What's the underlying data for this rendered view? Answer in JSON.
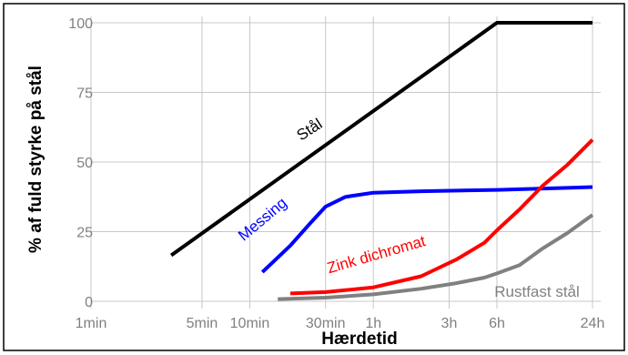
{
  "chart_data": {
    "type": "line",
    "title": "",
    "xlabel": "Hærdetid",
    "ylabel": "% af fuld styrke på stål",
    "x_scale": "log",
    "x_unit": "minutes",
    "x_ticks": [
      {
        "value": 1,
        "label": "1min"
      },
      {
        "value": 5,
        "label": "5min"
      },
      {
        "value": 10,
        "label": "10min"
      },
      {
        "value": 30,
        "label": "30min"
      },
      {
        "value": 60,
        "label": "1h"
      },
      {
        "value": 180,
        "label": "3h"
      },
      {
        "value": 360,
        "label": "6h"
      },
      {
        "value": 1440,
        "label": "24h"
      }
    ],
    "y_ticks": [
      0,
      25,
      50,
      75,
      100
    ],
    "xlim": [
      1,
      1440
    ],
    "ylim": [
      0,
      100
    ],
    "grid": true,
    "series": [
      {
        "name": "Stål",
        "color": "#000000",
        "points": [
          [
            3.2,
            16.5
          ],
          [
            360,
            100
          ],
          [
            1440,
            100
          ]
        ]
      },
      {
        "name": "Messing",
        "color": "#0000ff",
        "points": [
          [
            12,
            10.5
          ],
          [
            18,
            20
          ],
          [
            24,
            28
          ],
          [
            30,
            34
          ],
          [
            40,
            37.5
          ],
          [
            60,
            39
          ],
          [
            120,
            39.5
          ],
          [
            360,
            40
          ],
          [
            1440,
            41
          ]
        ]
      },
      {
        "name": "Zink dichromat",
        "color": "#ff0000",
        "points": [
          [
            18,
            2.8
          ],
          [
            30,
            3.3
          ],
          [
            60,
            5
          ],
          [
            120,
            9
          ],
          [
            200,
            15
          ],
          [
            300,
            21
          ],
          [
            360,
            25.5
          ],
          [
            500,
            33
          ],
          [
            700,
            41.5
          ],
          [
            1000,
            49
          ],
          [
            1440,
            58
          ]
        ]
      },
      {
        "name": "Rustfast stål",
        "color": "#808080",
        "points": [
          [
            15,
            0.8
          ],
          [
            30,
            1.3
          ],
          [
            60,
            2.5
          ],
          [
            120,
            4.5
          ],
          [
            200,
            6.5
          ],
          [
            300,
            8.5
          ],
          [
            360,
            10
          ],
          [
            500,
            13
          ],
          [
            700,
            19
          ],
          [
            1000,
            24.5
          ],
          [
            1440,
            31
          ]
        ]
      }
    ]
  }
}
